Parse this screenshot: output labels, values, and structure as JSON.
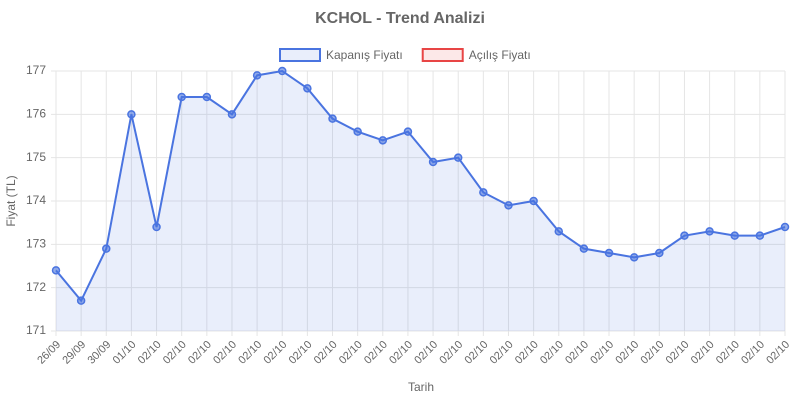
{
  "chart_data": {
    "type": "line",
    "title": "KCHOL - Trend Analizi",
    "x_label": "Tarih",
    "y_label": "Fiyat (TL)",
    "categories": [
      "26/09",
      "29/09",
      "30/09",
      "01/10",
      "02/10",
      "02/10",
      "02/10",
      "02/10",
      "02/10",
      "02/10",
      "02/10",
      "02/10",
      "02/10",
      "02/10",
      "02/10",
      "02/10",
      "02/10",
      "02/10",
      "02/10",
      "02/10",
      "02/10",
      "02/10",
      "02/10",
      "02/10",
      "02/10",
      "02/10",
      "02/10",
      "02/10",
      "02/10",
      "02/10"
    ],
    "series": [
      {
        "name": "Kapanış Fiyatı",
        "color": "#4a74e0",
        "fill": "rgba(74,116,224,0.12)",
        "values": [
          172.4,
          171.7,
          172.9,
          176,
          173.4,
          176.4,
          176.4,
          176,
          176.9,
          177,
          176.6,
          175.9,
          175.6,
          175.4,
          175.6,
          174.9,
          175,
          174.2,
          173.9,
          174,
          173.3,
          172.9,
          172.8,
          172.7,
          172.8,
          173.2,
          173.3,
          173.2,
          173.2,
          173.4
        ]
      },
      {
        "name": "Açılış Fiyatı",
        "color": "#e84545",
        "fill": "rgba(232,69,69,0.12)",
        "values": [
          null,
          null,
          null,
          null,
          null,
          null,
          null,
          null,
          null,
          null,
          null,
          null,
          null,
          null,
          null,
          null,
          null,
          null,
          null,
          null,
          null,
          null,
          null,
          null,
          null,
          null,
          null,
          null,
          null,
          null
        ]
      }
    ],
    "ylim": [
      171,
      177
    ],
    "yticks": [
      171,
      172,
      173,
      174,
      175,
      176,
      177
    ],
    "grid": true
  }
}
